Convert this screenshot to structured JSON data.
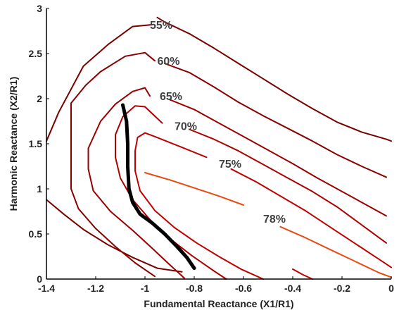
{
  "chart_data": {
    "type": "line",
    "title": "",
    "xlabel": "Fundamental Reactance (X1/R1)",
    "ylabel": "Harmonic Reactance (X2/R1)",
    "xlim": [
      -1.4,
      0
    ],
    "ylim": [
      0,
      3
    ],
    "xticks": [
      -1.4,
      -1.2,
      -1,
      -0.8,
      -0.6,
      -0.4,
      -0.2,
      0
    ],
    "xtick_labels": [
      "-1.4",
      "-1.2",
      "-1",
      "-0.8",
      "-0.6",
      "-0.4",
      "-0.2",
      "0"
    ],
    "yticks": [
      0,
      0.5,
      1,
      1.5,
      2,
      2.5,
      3
    ],
    "ytick_labels": [
      "0",
      "0.5",
      "1",
      "1.5",
      "2",
      "2.5",
      "3"
    ],
    "grid": false,
    "legend": "none",
    "series": [
      {
        "label": "55%",
        "color": "#7a0000",
        "width": 2,
        "label_at": [
          -0.98,
          2.82
        ],
        "x": [
          -0.95,
          -0.92,
          -0.82,
          -0.72,
          -0.62,
          -0.52,
          -0.42,
          -0.32,
          -0.22,
          -0.12,
          -0.02,
          0.0
        ],
        "y": [
          2.9,
          2.85,
          2.72,
          2.56,
          2.39,
          2.22,
          2.05,
          1.89,
          1.74,
          1.63,
          1.55,
          1.53
        ]
      },
      {
        "label": "",
        "color": "#7a0000",
        "width": 2,
        "x": [
          -0.97,
          -1.05,
          -1.15,
          -1.25,
          -1.35,
          -1.4
        ],
        "y": [
          2.82,
          2.8,
          2.6,
          2.36,
          1.85,
          1.53
        ]
      },
      {
        "label": "",
        "color": "#7a0000",
        "width": 2,
        "x": [
          -1.4,
          -1.33,
          -1.25,
          -1.15,
          -1.05,
          -0.95,
          -0.85
        ],
        "y": [
          0.88,
          0.72,
          0.55,
          0.38,
          0.24,
          0.12,
          0.08
        ]
      },
      {
        "label": "60%",
        "color": "#8a0000",
        "width": 2,
        "label_at": [
          -0.95,
          2.42
        ],
        "x": [
          -0.92,
          -0.82,
          -0.72,
          -0.62,
          -0.52,
          -0.42,
          -0.32,
          -0.22,
          -0.12,
          -0.02
        ],
        "y": [
          2.39,
          2.29,
          2.13,
          1.96,
          1.81,
          1.67,
          1.53,
          1.38,
          1.25,
          1.13
        ]
      },
      {
        "label": "",
        "color": "#8a0000",
        "width": 2,
        "x": [
          -0.96,
          -1.0,
          -1.08,
          -1.18,
          -1.24,
          -1.3,
          -1.3,
          -1.27,
          -1.2,
          -1.12,
          -1.04,
          -0.96
        ],
        "y": [
          2.42,
          2.51,
          2.47,
          2.3,
          2.15,
          1.95,
          1.0,
          0.78,
          0.56,
          0.36,
          0.18,
          0.03
        ]
      },
      {
        "label": "65%",
        "color": "#9a0000",
        "width": 2,
        "label_at": [
          -0.94,
          2.03
        ],
        "x": [
          -0.9,
          -0.8,
          -0.7,
          -0.6,
          -0.5,
          -0.4,
          -0.3,
          -0.2,
          -0.1,
          -0.02
        ],
        "y": [
          1.99,
          1.88,
          1.73,
          1.58,
          1.43,
          1.28,
          1.12,
          0.97,
          0.82,
          0.7
        ]
      },
      {
        "label": "",
        "color": "#9a0000",
        "width": 2,
        "x": [
          -0.98,
          -1.0,
          -1.05,
          -1.12,
          -1.18,
          -1.23,
          -1.23,
          -1.21,
          -1.14,
          -1.05,
          -0.97,
          -0.9,
          -0.84
        ],
        "y": [
          2.03,
          2.12,
          2.08,
          1.94,
          1.75,
          1.45,
          1.22,
          0.98,
          0.75,
          0.54,
          0.34,
          0.16,
          0.01
        ]
      },
      {
        "label": "70%",
        "color": "#ad0000",
        "width": 2,
        "label_at": [
          -0.88,
          1.7
        ],
        "x": [
          -0.82,
          -0.72,
          -0.62,
          -0.52,
          -0.42,
          -0.32,
          -0.22,
          -0.12,
          -0.02
        ],
        "y": [
          1.66,
          1.55,
          1.42,
          1.27,
          1.12,
          0.97,
          0.8,
          0.6,
          0.4
        ]
      },
      {
        "label": "",
        "color": "#ad0000",
        "width": 2,
        "x": [
          -0.93,
          -1.0,
          -1.04,
          -1.09,
          -1.12,
          -1.12,
          -1.1,
          -1.05,
          -0.98,
          -0.9,
          -0.81,
          -0.72,
          -0.67
        ],
        "y": [
          1.73,
          1.91,
          1.92,
          1.8,
          1.6,
          1.35,
          1.12,
          0.88,
          0.66,
          0.45,
          0.26,
          0.09,
          0.0
        ]
      },
      {
        "label": "75%",
        "color": "#c00000",
        "width": 2,
        "label_at": [
          -0.7,
          1.28
        ],
        "x": [
          -0.65,
          -0.55,
          -0.45,
          -0.35,
          -0.25,
          -0.15,
          -0.05,
          0.0
        ],
        "y": [
          1.22,
          1.08,
          0.92,
          0.76,
          0.58,
          0.4,
          0.22,
          0.13
        ]
      },
      {
        "label": "",
        "color": "#c00000",
        "width": 2,
        "x": [
          -0.75,
          -0.85,
          -0.96,
          -1.0,
          -1.03,
          -1.04,
          -1.04,
          -1.02,
          -0.96,
          -0.88,
          -0.79,
          -0.7,
          -0.61,
          -0.52
        ],
        "y": [
          1.35,
          1.46,
          1.58,
          1.62,
          1.57,
          1.42,
          1.2,
          0.98,
          0.76,
          0.57,
          0.4,
          0.25,
          0.11,
          0.0
        ]
      },
      {
        "label": "",
        "color": "#c00000",
        "width": 2,
        "x": [
          -0.4,
          -0.36,
          -0.32
        ],
        "y": [
          0.11,
          0.05,
          0.0
        ]
      },
      {
        "label": "78%",
        "color": "#ea4a12",
        "width": 2,
        "label_at": [
          -0.52,
          0.67
        ],
        "x": [
          -1.0,
          -0.9,
          -0.8,
          -0.7,
          -0.6
        ],
        "y": [
          1.18,
          1.1,
          1.01,
          0.92,
          0.82
        ]
      },
      {
        "label": "",
        "color": "#ea4a12",
        "width": 2,
        "x": [
          -0.45,
          -0.35,
          -0.25,
          -0.15,
          -0.05,
          0.0
        ],
        "y": [
          0.58,
          0.46,
          0.33,
          0.2,
          0.07,
          0.02
        ]
      },
      {
        "label": "",
        "color": "#000000",
        "width": 5,
        "x": [
          -1.09,
          -1.075,
          -1.07,
          -1.07,
          -1.065,
          -1.05,
          -1.02,
          -0.97,
          -0.92,
          -0.87,
          -0.83,
          -0.8
        ],
        "y": [
          1.93,
          1.75,
          1.5,
          1.25,
          1.0,
          0.85,
          0.72,
          0.62,
          0.5,
          0.36,
          0.24,
          0.12
        ]
      }
    ]
  }
}
